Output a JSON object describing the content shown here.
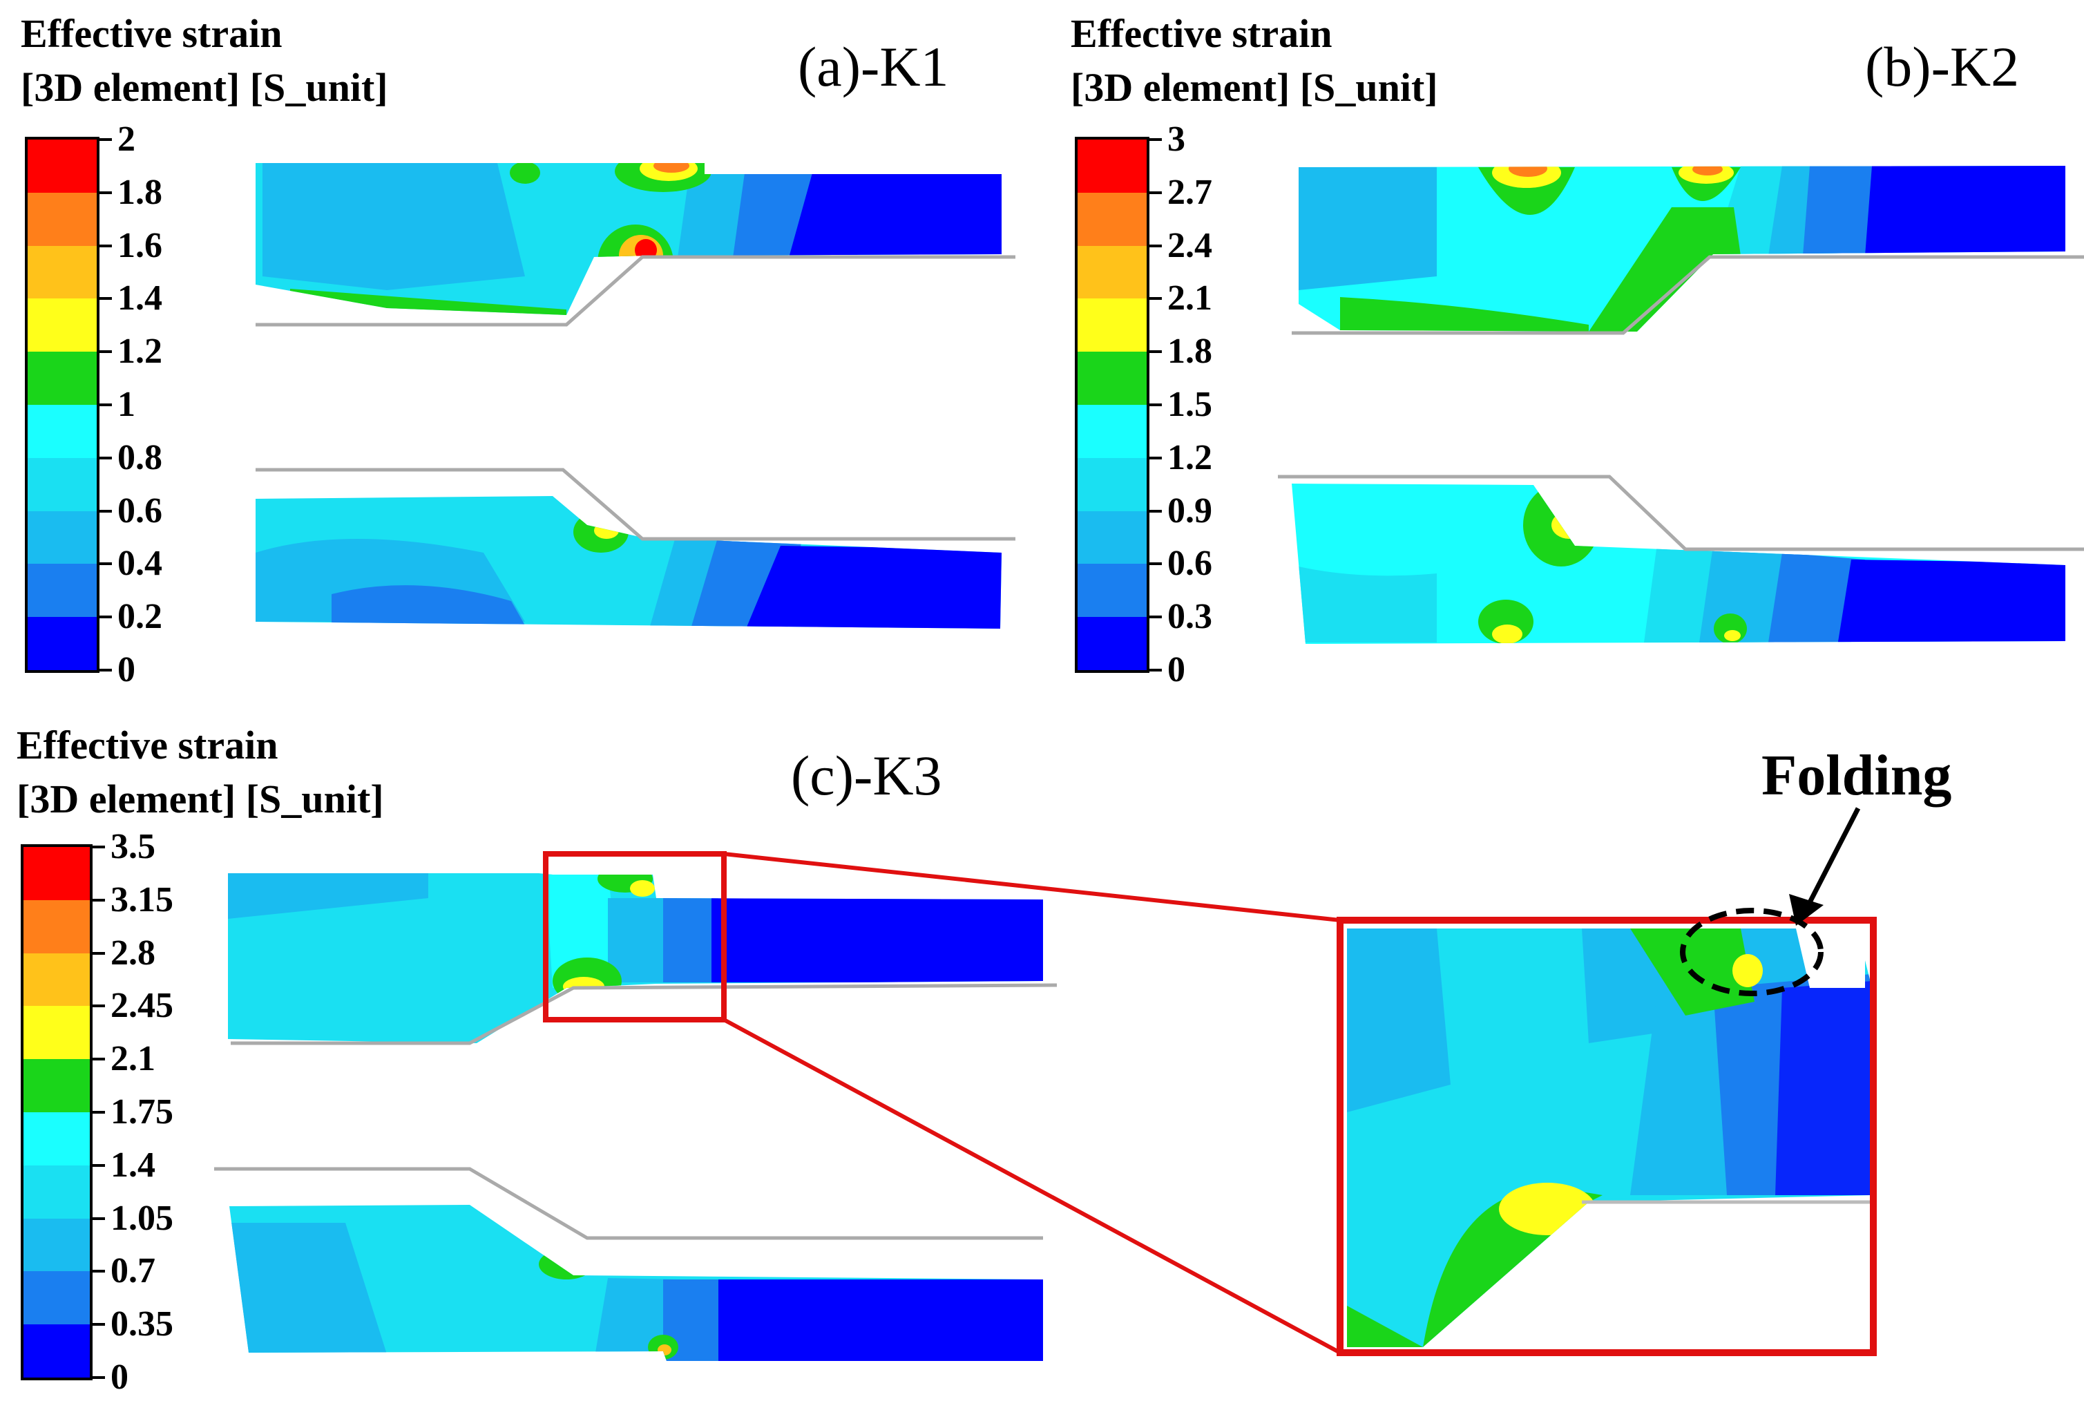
{
  "panels": [
    {
      "id": "a",
      "legend_title_line1": "Effective strain",
      "legend_title_line2": "[3D element] [S_unit]",
      "label": "(a)-K1",
      "ticks": [
        "2",
        "1.8",
        "1.6",
        "1.4",
        "1.2",
        "1",
        "0.8",
        "0.6",
        "0.4",
        "0.2",
        "0"
      ]
    },
    {
      "id": "b",
      "legend_title_line1": "Effective strain",
      "legend_title_line2": "[3D element] [S_unit]",
      "label": "(b)-K2",
      "ticks": [
        "3",
        "2.7",
        "2.4",
        "2.1",
        "1.8",
        "1.5",
        "1.2",
        "0.9",
        "0.6",
        "0.3",
        "0"
      ]
    },
    {
      "id": "c",
      "legend_title_line1": "Effective strain",
      "legend_title_line2": "[3D element] [S_unit]",
      "label": "(c)-K3",
      "ticks": [
        "3.5",
        "3.15",
        "2.8",
        "2.45",
        "2.1",
        "1.75",
        "1.4",
        "1.05",
        "0.7",
        "0.35",
        "0"
      ]
    }
  ],
  "colorbar_colors": [
    "#ff0000",
    "#ff7f1a",
    "#ffc21a",
    "#ffff1a",
    "#1ad51a",
    "#1affff",
    "#1ae0f2",
    "#1abcf0",
    "#1a7ff0",
    "#0000ff"
  ],
  "annotation": {
    "label": "Folding"
  },
  "highlight_color": "#ff0000"
}
